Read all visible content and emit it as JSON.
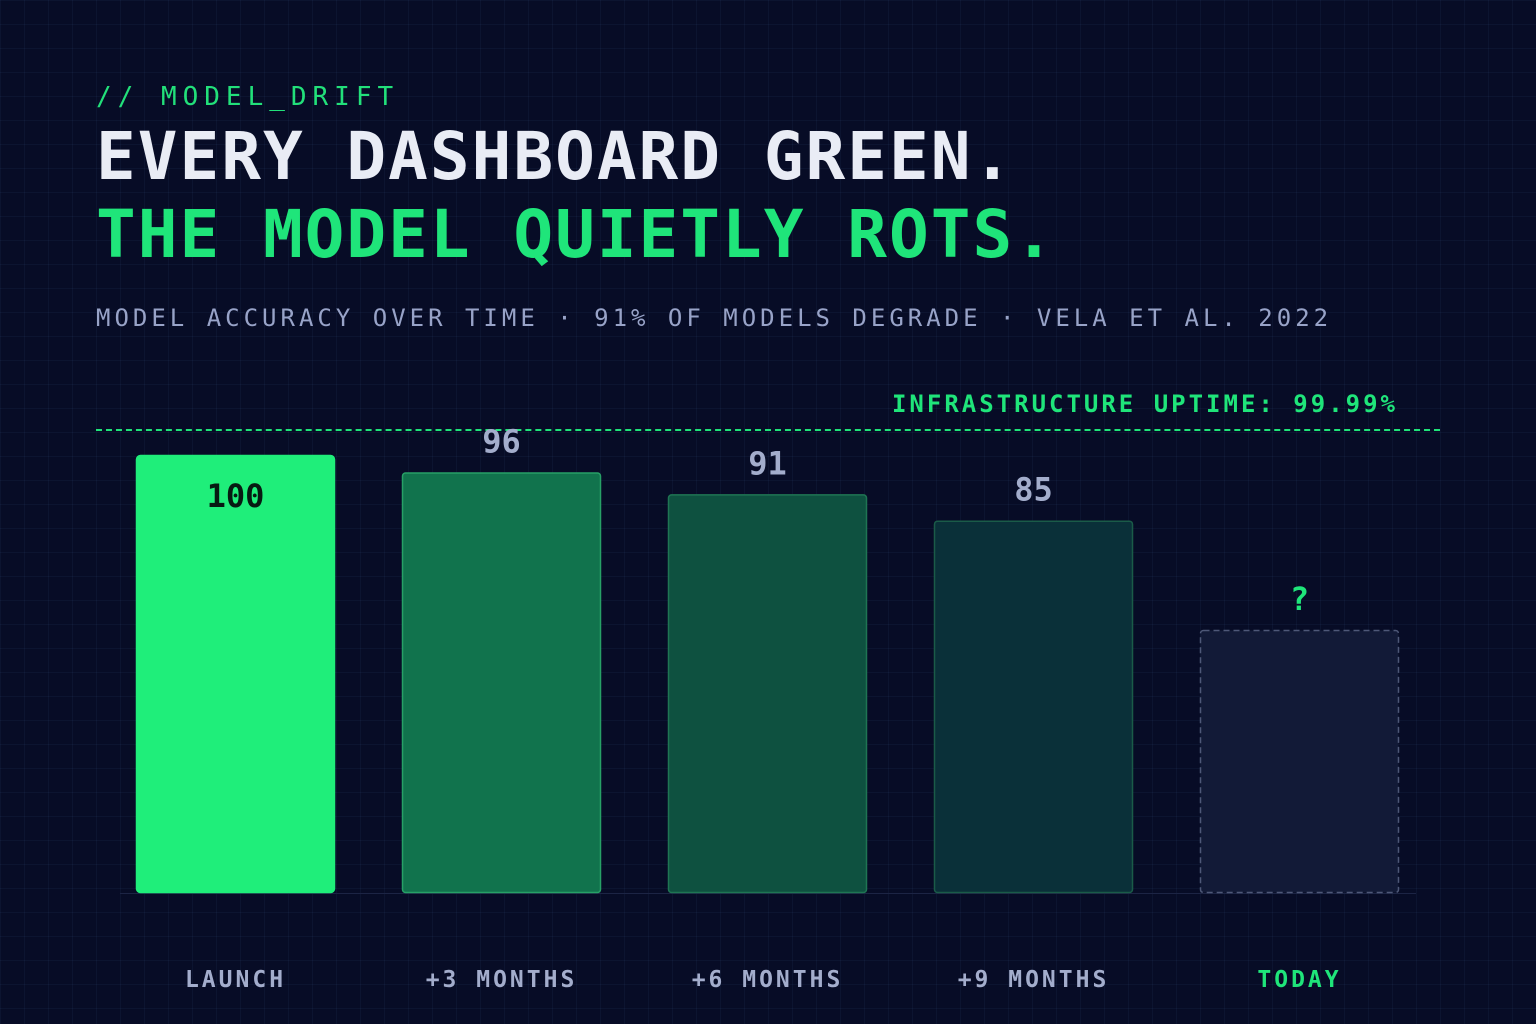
{
  "header": {
    "kicker": "// MODEL_DRIFT",
    "headline_line1": "EVERY DASHBOARD GREEN.",
    "headline_line2": "THE MODEL QUIETLY ROTS.",
    "subtitle": "MODEL ACCURACY OVER TIME · 91% OF MODELS DEGRADE · VELA ET AL. 2022"
  },
  "reference_line": {
    "label": "INFRASTRUCTURE UPTIME: 99.99%"
  },
  "colors": {
    "background": "#070c26",
    "accent_green": "#1fe57a",
    "text_light": "#e9ecf5",
    "text_muted": "#98a3c8"
  },
  "chart_data": {
    "type": "bar",
    "title": "",
    "xlabel": "",
    "ylabel": "",
    "ylim": [
      0,
      100
    ],
    "grid": true,
    "categories": [
      "LAUNCH",
      "+3 MONTHS",
      "+6 MONTHS",
      "+9 MONTHS",
      "TODAY"
    ],
    "values": [
      100,
      96,
      91,
      85,
      null
    ],
    "value_labels": [
      "100",
      "96",
      "91",
      "85",
      "?"
    ],
    "bar_colors": [
      "#1fee7a",
      "#11734d",
      "#0e5140",
      "#0a3039",
      "#121a37"
    ],
    "bar_borders": [
      "#1fee7a",
      "#27a066",
      "#1f7553",
      "#1a5b48",
      "#4e5878"
    ],
    "value_label_colors": [
      "#071a12",
      "#a3adcc",
      "#a3adcc",
      "#a3adcc",
      "#1fe57a"
    ],
    "category_label_colors": [
      "#a3adcc",
      "#a3adcc",
      "#a3adcc",
      "#a3adcc",
      "#1fe57a"
    ],
    "unknown_bar_index": 4
  }
}
